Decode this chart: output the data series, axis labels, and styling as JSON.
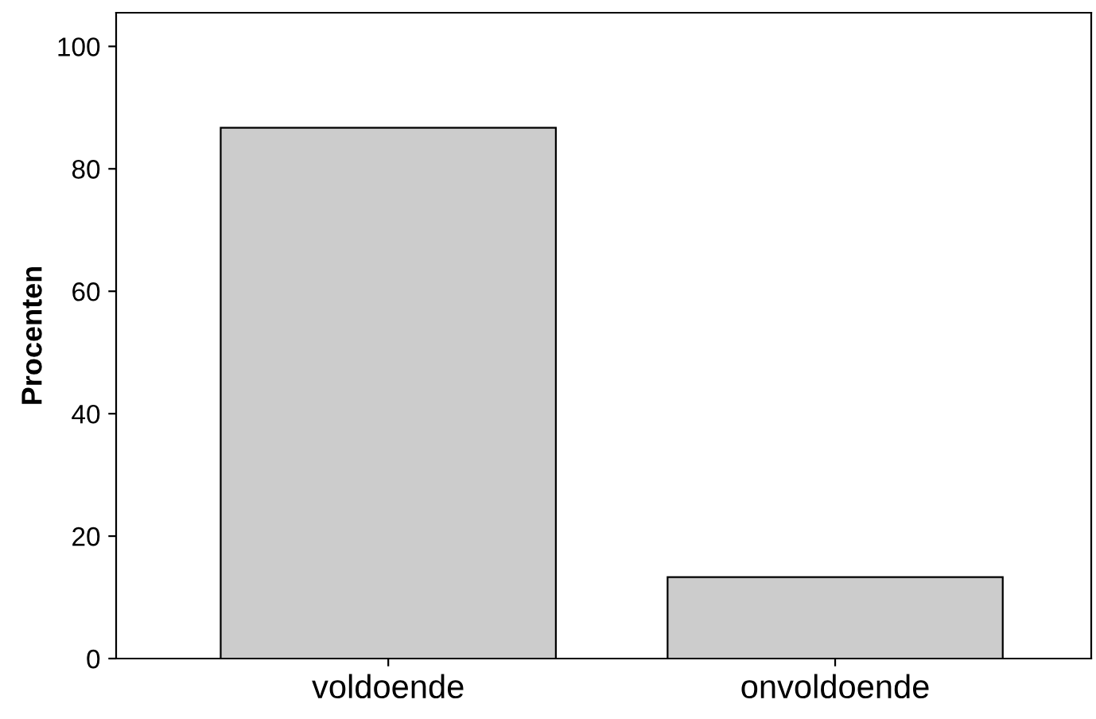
{
  "chart_data": {
    "type": "bar",
    "ylabel": "Procenten",
    "categories": [
      "voldoende",
      "onvoldoende"
    ],
    "values": [
      86.7,
      13.3
    ],
    "color": "#cccccc",
    "ylim": [
      0,
      105.5
    ],
    "yticks": [
      0,
      20,
      40,
      60,
      80,
      100
    ],
    "grid": false,
    "legend": false
  }
}
